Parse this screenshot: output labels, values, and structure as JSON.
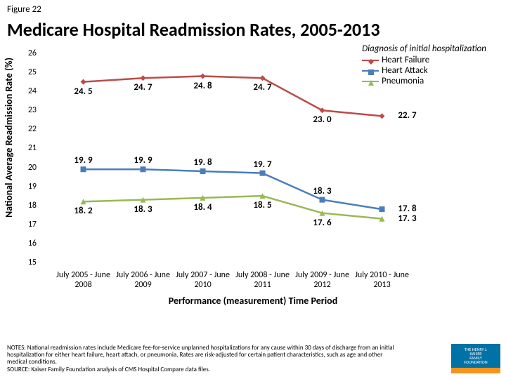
{
  "figure_number": "Figure 22",
  "title": "Medicare Hospital Readmission Rates, 2005-2013",
  "chart": {
    "type": "line",
    "ylabel": "National Average Readmission Rate (%)",
    "xlabel": "Performance (measurement) Time Period",
    "ylim": [
      15,
      26
    ],
    "yticks": [
      15,
      16,
      17,
      18,
      19,
      20,
      21,
      22,
      23,
      24,
      25,
      26
    ],
    "categories": [
      "July 2005 - June 2008",
      "July 2006 - June 2009",
      "July 2007 - June 2010",
      "July 2008 - June 2011",
      "July 2009 - June 2012",
      "July 2010 - June 2013"
    ],
    "legend_title": "Diagnosis of initial hospitalization",
    "series": [
      {
        "name": "Heart Failure",
        "color": "#be4b48",
        "marker": "diamond",
        "values": [
          24.5,
          24.7,
          24.8,
          24.7,
          23.0,
          22.7
        ],
        "label_pos": [
          "below",
          "below",
          "below",
          "below",
          "below",
          "right"
        ]
      },
      {
        "name": "Heart Attack",
        "color": "#4a7ebb",
        "marker": "square",
        "values": [
          19.9,
          19.9,
          19.8,
          19.7,
          18.3,
          17.8
        ],
        "label_pos": [
          "above",
          "above",
          "above",
          "above",
          "above",
          "right"
        ]
      },
      {
        "name": "Pneumonia",
        "color": "#98b954",
        "marker": "triangle",
        "values": [
          18.2,
          18.3,
          18.4,
          18.5,
          17.6,
          17.3
        ],
        "label_pos": [
          "below",
          "below",
          "below",
          "below",
          "below",
          "right"
        ]
      }
    ],
    "line_width": 2.5,
    "marker_size": 8,
    "background_color": "#ffffff",
    "tick_fontsize": 12,
    "label_fontsize": 14,
    "datalabel_fontsize": 13
  },
  "notes": {
    "line1": "NOTES: National readmission rates include Medicare fee-for-service unplanned hospitalizations for any cause within 30 days of discharge from an initial hospitalization for either heart failure, heart attach, or pneumonia. Rates are risk-adjusted for certain patient characteristics, such as age and other medical conditions.",
    "line2": "SOURCE: Kaiser Family Foundation analysis of CMS Hospital Compare data files."
  },
  "logo": {
    "l1": "THE HENRY J.",
    "l2": "KAISER",
    "l3": "FAMILY",
    "l4": "FOUNDATION"
  }
}
